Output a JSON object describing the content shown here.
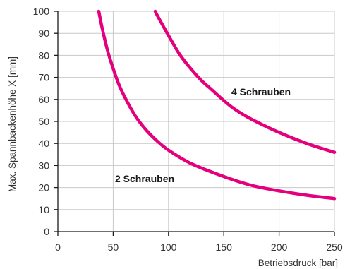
{
  "chart_data": {
    "type": "line",
    "xlabel": "Betriebsdruck [bar]",
    "ylabel": "Max. Spannbackenhöhe X [mm]",
    "xlim": [
      0,
      250
    ],
    "ylim": [
      0,
      100
    ],
    "x_ticks": [
      "0",
      "50",
      "100",
      "150",
      "200",
      "250"
    ],
    "y_ticks": [
      "0",
      "10",
      "20",
      "30",
      "40",
      "50",
      "60",
      "70",
      "80",
      "90",
      "100"
    ],
    "grid": true,
    "series_color": "#e4007d",
    "series": [
      {
        "name": "2 Schrauben",
        "x": [
          37,
          40,
          45,
          50,
          55,
          60,
          70,
          80,
          90,
          100,
          120,
          150,
          175,
          200,
          225,
          250
        ],
        "y": [
          100,
          92.5,
          82,
          74,
          67,
          61.5,
          52.5,
          46,
          41,
          37,
          31,
          25,
          21,
          18.5,
          16.5,
          15
        ]
      },
      {
        "name": "4 Schrauben",
        "x": [
          88,
          90,
          100,
          110,
          120,
          130,
          140,
          150,
          160,
          175,
          200,
          225,
          250
        ],
        "y": [
          100,
          98,
          89,
          80.5,
          74,
          68.5,
          64,
          59.5,
          55.5,
          51,
          45,
          40,
          36
        ]
      }
    ]
  }
}
